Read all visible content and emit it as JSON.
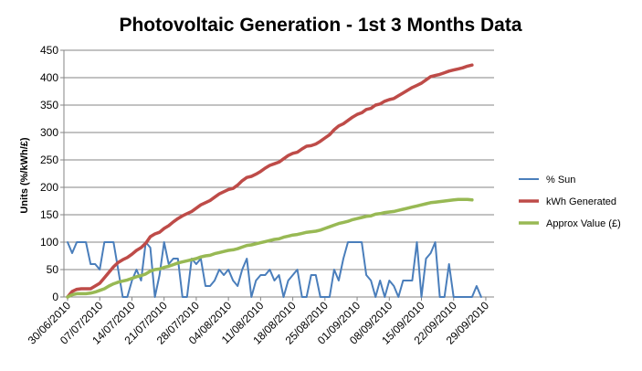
{
  "chart_data": {
    "type": "line",
    "title": "Photovoltaic Generation - 1st 3 Months Data",
    "xlabel": "",
    "ylabel": "Units (%/kWh/£)",
    "ylim": [
      0,
      450
    ],
    "yticks": [
      "0",
      "50",
      "100",
      "150",
      "200",
      "250",
      "300",
      "350",
      "400",
      "450"
    ],
    "xtick_labels": [
      "30/06/2010",
      "07/07/2010",
      "14/07/2010",
      "21/07/2010",
      "28/07/2010",
      "04/08/2010",
      "11/08/2010",
      "18/08/2010",
      "25/08/2010",
      "01/09/2010",
      "08/09/2010",
      "15/09/2010",
      "22/09/2010",
      "29/09/2010"
    ],
    "grid": "horizontal",
    "legend_position": "right",
    "start_date": "30/06/2010",
    "series": [
      {
        "name": "% Sun",
        "color": "#4a7ebb",
        "values": [
          100,
          80,
          100,
          100,
          100,
          60,
          60,
          50,
          100,
          100,
          100,
          50,
          0,
          0,
          30,
          50,
          30,
          100,
          90,
          0,
          40,
          100,
          60,
          70,
          70,
          0,
          0,
          70,
          60,
          70,
          20,
          20,
          30,
          50,
          40,
          50,
          30,
          20,
          50,
          70,
          0,
          30,
          40,
          40,
          50,
          30,
          40,
          0,
          30,
          40,
          50,
          0,
          0,
          40,
          40,
          0,
          0,
          0,
          50,
          30,
          70,
          100,
          100,
          100,
          100,
          40,
          30,
          0,
          30,
          0,
          30,
          20,
          0,
          30,
          30,
          30,
          100,
          0,
          70,
          80,
          100,
          0,
          0,
          60,
          0,
          0,
          0,
          0,
          0,
          20,
          0
        ]
      },
      {
        "name": "kWh Generated",
        "color": "#be4b48",
        "values": [
          0,
          10,
          14,
          15,
          15,
          15,
          20,
          25,
          35,
          45,
          55,
          63,
          68,
          72,
          78,
          85,
          90,
          98,
          110,
          115,
          118,
          125,
          130,
          137,
          143,
          148,
          152,
          156,
          162,
          168,
          172,
          176,
          182,
          188,
          192,
          196,
          198,
          204,
          212,
          218,
          220,
          224,
          229,
          235,
          240,
          243,
          246,
          252,
          258,
          262,
          264,
          270,
          275,
          276,
          279,
          284,
          290,
          296,
          305,
          312,
          316,
          322,
          328,
          333,
          336,
          342,
          344,
          350,
          352,
          357,
          360,
          362,
          367,
          372,
          377,
          382,
          386,
          390,
          396,
          402,
          404,
          406,
          409,
          412,
          414,
          416,
          418,
          421,
          423
        ]
      },
      {
        "name": "Approx Value (£)",
        "color": "#98b954",
        "values": [
          0,
          4,
          6,
          6,
          6,
          7,
          9,
          12,
          15,
          20,
          24,
          27,
          29,
          31,
          34,
          37,
          39,
          42,
          47,
          50,
          51,
          54,
          56,
          59,
          62,
          64,
          66,
          68,
          70,
          73,
          75,
          76,
          79,
          81,
          83,
          85,
          86,
          88,
          91,
          94,
          95,
          97,
          99,
          101,
          103,
          105,
          106,
          109,
          111,
          113,
          114,
          116,
          118,
          119,
          120,
          122,
          125,
          128,
          131,
          134,
          136,
          138,
          141,
          143,
          145,
          147,
          148,
          151,
          152,
          154,
          155,
          156,
          158,
          160,
          162,
          164,
          166,
          168,
          170,
          172,
          173,
          174,
          175,
          176,
          177,
          178,
          178,
          178,
          177
        ]
      }
    ]
  }
}
